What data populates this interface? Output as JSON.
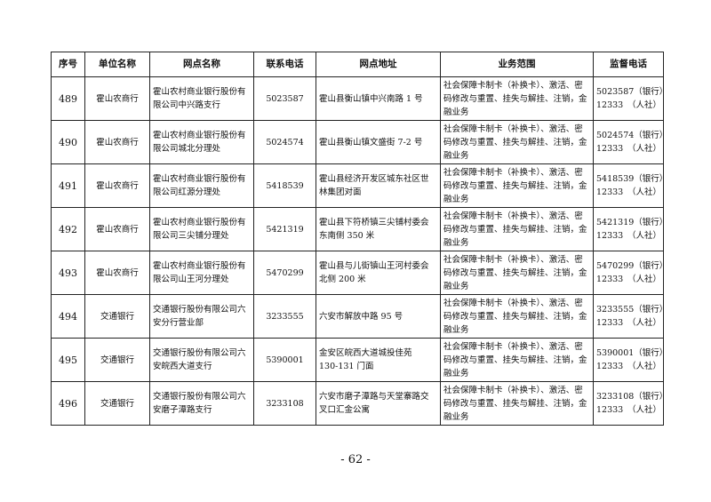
{
  "table": {
    "headers": [
      "序号",
      "单位名称",
      "网点名称",
      "联系电话",
      "网点地址",
      "业务范围",
      "监督电话"
    ],
    "rows": [
      {
        "no": "489",
        "unit": "霍山农商行",
        "name": [
          "霍山农村商业银行股份有",
          "限公司中兴路支行"
        ],
        "phone": "5023587",
        "address": [
          "霍山县衡山镇中兴南路 1 号"
        ],
        "scope": [
          "社会保障卡制卡（补换卡）、激活、密",
          "码修改与重置、挂失与解挂、注销，金",
          "融业务"
        ],
        "supervision": [
          "5023587（银行）",
          "12333　（人社）"
        ]
      },
      {
        "no": "490",
        "unit": "霍山农商行",
        "name": [
          "霍山农村商业银行股份有",
          "限公司城北分理处"
        ],
        "phone": "5024574",
        "address": [
          "霍山县衡山镇文盛街 7-2 号"
        ],
        "scope": [
          "社会保障卡制卡（补换卡）、激活、密",
          "码修改与重置、挂失与解挂、注销，金",
          "融业务"
        ],
        "supervision": [
          "5024574（银行）",
          "12333　（人社）"
        ]
      },
      {
        "no": "491",
        "unit": "霍山农商行",
        "name": [
          "霍山农村商业银行股份有",
          "限公司红源分理处"
        ],
        "phone": "5418539",
        "address": [
          "霍山县经济开发区城东社区世",
          "林集团对面"
        ],
        "scope": [
          "社会保障卡制卡（补换卡）、激活、密",
          "码修改与重置、挂失与解挂、注销，金",
          "融业务"
        ],
        "supervision": [
          "5418539（银行）",
          "12333　（人社）"
        ]
      },
      {
        "no": "492",
        "unit": "霍山农商行",
        "name": [
          "霍山农村商业银行股份有",
          "限公司三尖铺分理处"
        ],
        "phone": "5421319",
        "address": [
          "霍山县下符桥镇三尖铺村委会",
          "东南侧 350 米"
        ],
        "scope": [
          "社会保障卡制卡（补换卡）、激活、密",
          "码修改与重置、挂失与解挂、注销，金",
          "融业务"
        ],
        "supervision": [
          "5421319（银行）",
          "12333　（人社）"
        ]
      },
      {
        "no": "493",
        "unit": "霍山农商行",
        "name": [
          "霍山农村商业银行股份有",
          "限公司山王河分理处"
        ],
        "phone": "5470299",
        "address": [
          "霍山县与儿街镇山王河村委会",
          "北侧 200 米"
        ],
        "scope": [
          "社会保障卡制卡（补换卡）、激活、密",
          "码修改与重置、挂失与解挂、注销，金",
          "融业务"
        ],
        "supervision": [
          "5470299（银行）",
          "12333　（人社）"
        ]
      },
      {
        "no": "494",
        "unit": "交通银行",
        "name": [
          "交通银行股份有限公司六",
          "安分行营业部"
        ],
        "phone": "3233555",
        "address": [
          "六安市解放中路 95 号"
        ],
        "scope": [
          "社会保障卡制卡（补换卡）、激活、密",
          "码修改与重置、挂失与解挂、注销，金",
          "融业务"
        ],
        "supervision": [
          "3233555（银行）",
          "12333　（人社）"
        ]
      },
      {
        "no": "495",
        "unit": "交通银行",
        "name": [
          "交通银行股份有限公司六",
          "安皖西大道支行"
        ],
        "phone": "5390001",
        "address": [
          "金安区皖西大道城投佳苑",
          "130-131 门面"
        ],
        "scope": [
          "社会保障卡制卡（补换卡）、激活、密",
          "码修改与重置、挂失与解挂、注销，金",
          "融业务"
        ],
        "supervision": [
          "5390001（银行）",
          "12333　（人社）"
        ]
      },
      {
        "no": "496",
        "unit": "交通银行",
        "name": [
          "交通银行股份有限公司六",
          "安磨子潭路支行"
        ],
        "phone": "3233108",
        "address": [
          "六安市磨子潭路与天堂寨路交",
          "叉口汇金公寓"
        ],
        "scope": [
          "社会保障卡制卡（补换卡）、激活、密",
          "码修改与重置、挂失与解挂、注销，金",
          "融业务"
        ],
        "supervision": [
          "3233108（银行）",
          "12333　（人社）"
        ]
      }
    ]
  },
  "footer": {
    "page_number": "- 62 -"
  }
}
